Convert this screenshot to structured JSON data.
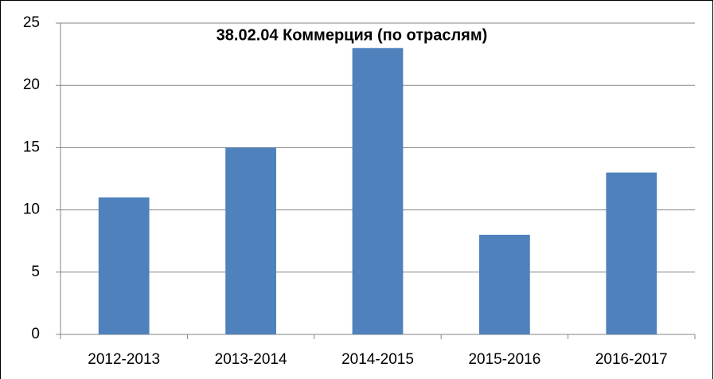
{
  "chart_data": {
    "type": "bar",
    "title": "38.02.04 Коммерция (по отраслям)",
    "categories": [
      "2012-2013",
      "2013-2014",
      "2014-2015",
      "2015-2016",
      "2016-2017"
    ],
    "values": [
      11,
      15,
      23,
      8,
      13
    ],
    "color": "#4f81bd",
    "ylim": [
      0,
      25
    ],
    "yticks": [
      0,
      5,
      10,
      15,
      20,
      25
    ],
    "grid": true
  }
}
